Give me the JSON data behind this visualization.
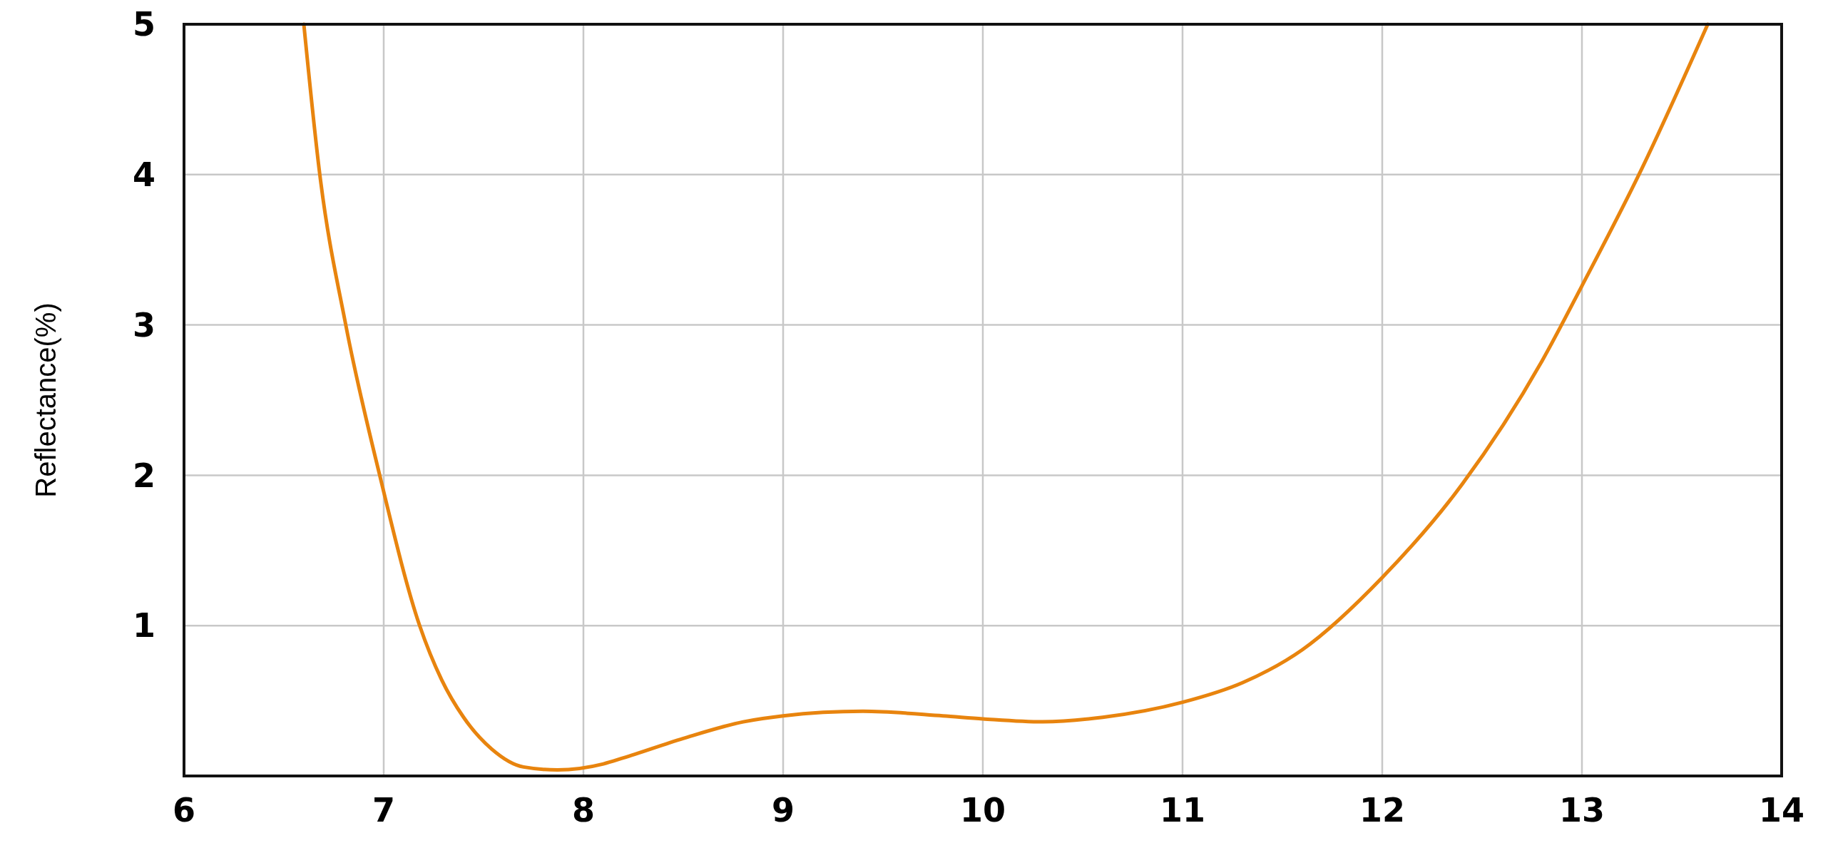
{
  "chart_data": {
    "type": "line",
    "ylabel": "Reflectance(%)",
    "xlim": [
      6,
      14
    ],
    "xticks": [
      6,
      7,
      8,
      9,
      10,
      11,
      12,
      13,
      14
    ],
    "ylim": [
      0,
      5
    ],
    "yticks": [
      {
        "value": 0,
        "label": null
      },
      1,
      2,
      3,
      4,
      5
    ],
    "grid": true,
    "marker": "none",
    "line_style": "solid",
    "series": [
      {
        "color": "#e8840e",
        "x": [
          6.6,
          6.68,
          6.81,
          6.98,
          7.18,
          7.29,
          7.4,
          7.54,
          7.7,
          7.87,
          8.1,
          8.2,
          8.5,
          8.8,
          9.0,
          9.4,
          9.8,
          10.0,
          10.3,
          10.6,
          11.0,
          11.3,
          11.6,
          12.0,
          12.4,
          12.8,
          13.0,
          13.3,
          13.63
        ],
        "values": [
          5.0,
          4.0,
          3.0,
          2.0,
          1.0,
          0.64,
          0.39,
          0.18,
          0.06,
          0.04,
          0.08,
          0.12,
          0.25,
          0.36,
          0.4,
          0.43,
          0.4,
          0.38,
          0.36,
          0.39,
          0.49,
          0.62,
          0.84,
          1.32,
          1.94,
          2.76,
          3.26,
          4.04,
          5.0
        ]
      }
    ]
  }
}
